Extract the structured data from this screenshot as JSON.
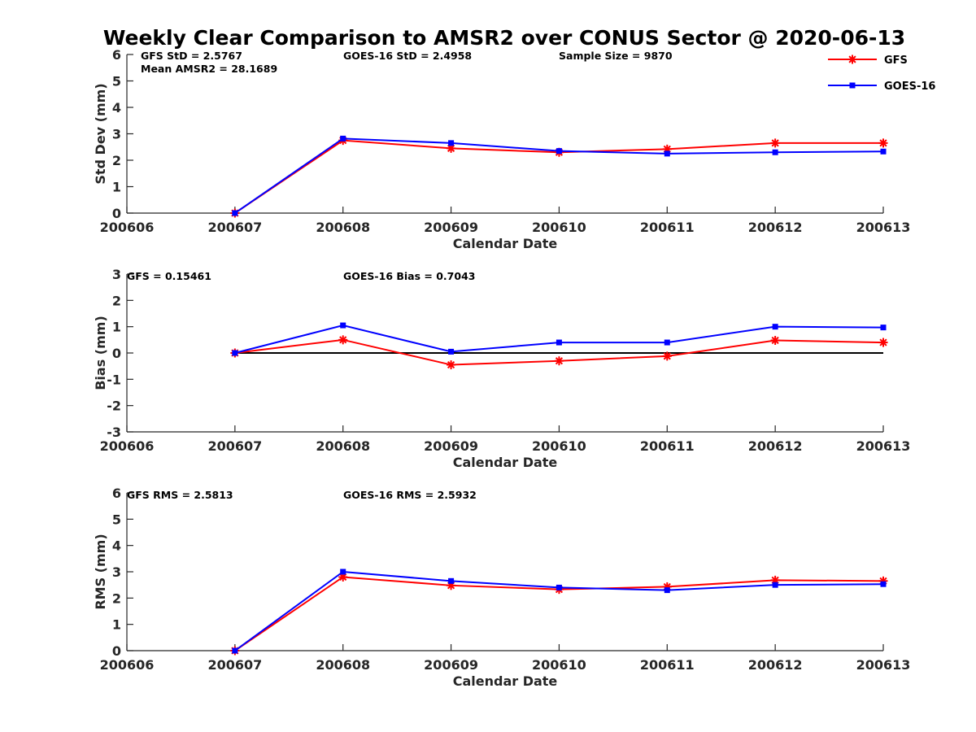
{
  "figure": {
    "title": "Weekly Clear Comparison to AMSR2 over CONUS Sector @ 2020-06-13"
  },
  "legend": {
    "placement": "top-right",
    "entries": [
      {
        "label": "GFS",
        "color": "#ff0000",
        "marker": "asterisk"
      },
      {
        "label": "GOES-16",
        "color": "#0000ff",
        "marker": "square"
      }
    ]
  },
  "chart_data": [
    {
      "type": "line",
      "title": "Weekly Clear Comparison to AMSR2 over CONUS Sector @ 2020-06-13",
      "xlabel": "Calendar Date",
      "ylabel": "Std Dev (mm)",
      "ylim": [
        0,
        6
      ],
      "yticks": [
        "0",
        "1",
        "2",
        "3",
        "4",
        "5",
        "6"
      ],
      "xlim": [
        0,
        7
      ],
      "x_tick_labels": [
        "200606",
        "200607",
        "200608",
        "200609",
        "200610",
        "200611",
        "200612",
        "200613"
      ],
      "x": [
        "200607",
        "200608",
        "200609",
        "200610",
        "200611",
        "200612",
        "200613"
      ],
      "grid": false,
      "reference_line": null,
      "annotations": [
        "GFS StD = 2.5767",
        "Mean AMSR2 = 28.1689",
        "GOES-16 StD = 2.4958",
        "Sample Size = 9870"
      ],
      "series": [
        {
          "name": "GFS",
          "color": "#ff0000",
          "marker": "asterisk",
          "values": [
            0.0,
            2.75,
            2.45,
            2.3,
            2.42,
            2.65,
            2.65
          ]
        },
        {
          "name": "GOES-16",
          "color": "#0000ff",
          "marker": "square",
          "values": [
            0.0,
            2.82,
            2.65,
            2.35,
            2.25,
            2.3,
            2.33
          ]
        }
      ]
    },
    {
      "type": "line",
      "xlabel": "Calendar Date",
      "ylabel": "Bias (mm)",
      "ylim": [
        -3,
        3
      ],
      "yticks": [
        "-3",
        "-2",
        "-1",
        "0",
        "1",
        "2",
        "3"
      ],
      "xlim": [
        0,
        7
      ],
      "x_tick_labels": [
        "200606",
        "200607",
        "200608",
        "200609",
        "200610",
        "200611",
        "200612",
        "200613"
      ],
      "x": [
        "200607",
        "200608",
        "200609",
        "200610",
        "200611",
        "200612",
        "200613"
      ],
      "grid": false,
      "reference_line": {
        "y": 0,
        "color": "#000000"
      },
      "annotations": [
        "GFS = 0.15461",
        "GOES-16 Bias  = 0.7043"
      ],
      "series": [
        {
          "name": "GFS",
          "color": "#ff0000",
          "marker": "asterisk",
          "values": [
            0.0,
            0.5,
            -0.45,
            -0.3,
            -0.12,
            0.48,
            0.4
          ]
        },
        {
          "name": "GOES-16",
          "color": "#0000ff",
          "marker": "square",
          "values": [
            0.0,
            1.05,
            0.05,
            0.4,
            0.4,
            1.0,
            0.97
          ]
        }
      ]
    },
    {
      "type": "line",
      "xlabel": "Calendar Date",
      "ylabel": "RMS (mm)",
      "ylim": [
        0,
        6
      ],
      "yticks": [
        "0",
        "1",
        "2",
        "3",
        "4",
        "5",
        "6"
      ],
      "xlim": [
        0,
        7
      ],
      "x_tick_labels": [
        "200606",
        "200607",
        "200608",
        "200609",
        "200610",
        "200611",
        "200612",
        "200613"
      ],
      "x": [
        "200607",
        "200608",
        "200609",
        "200610",
        "200611",
        "200612",
        "200613"
      ],
      "grid": false,
      "reference_line": null,
      "annotations": [
        "GFS RMS = 2.5813",
        "GOES-16 RMS = 2.5932"
      ],
      "series": [
        {
          "name": "GFS",
          "color": "#ff0000",
          "marker": "asterisk",
          "values": [
            0.0,
            2.8,
            2.48,
            2.33,
            2.43,
            2.68,
            2.65
          ]
        },
        {
          "name": "GOES-16",
          "color": "#0000ff",
          "marker": "square",
          "values": [
            0.0,
            3.0,
            2.65,
            2.4,
            2.3,
            2.5,
            2.53
          ]
        }
      ]
    }
  ]
}
